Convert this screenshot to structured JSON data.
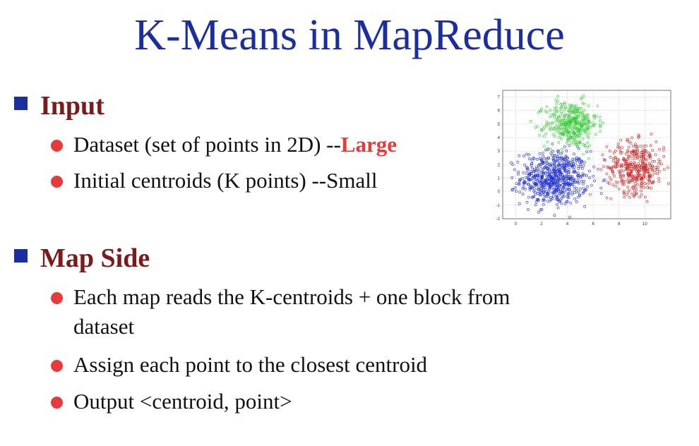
{
  "slide": {
    "title": "K-Means in MapReduce"
  },
  "sections": [
    {
      "heading": "Input",
      "bullets": [
        {
          "text": "Dataset (set of points in 2D) --",
          "highlight": "Large"
        },
        {
          "text": "Initial centroids (K points) --Small"
        }
      ]
    },
    {
      "heading": "Map Side",
      "bullets": [
        {
          "line1": "Each map reads the K-centroids + one block from",
          "line2": "dataset"
        },
        {
          "text": "Assign each point to the closest centroid"
        },
        {
          "text": "Output <centroid, point>"
        }
      ]
    }
  ],
  "colors": {
    "title": "#1a2ea0",
    "heading": "#7a1a1a",
    "bullet": "#e83a3a",
    "highlight": "#e83a3a"
  },
  "chart_data": {
    "type": "scatter",
    "x_ticks": [
      "0",
      "2",
      "4",
      "6",
      "8",
      "10"
    ],
    "y_ticks": [
      "-2",
      "-1",
      "0",
      "1",
      "2",
      "3",
      "4",
      "5",
      "6",
      "7"
    ],
    "xlim": [
      -1,
      12
    ],
    "ylim": [
      -2,
      7.5
    ],
    "grid": true,
    "clusters": [
      {
        "color": "#1f2fd1",
        "center": [
          3,
          1
        ],
        "spread": [
          1.3,
          1.0
        ],
        "count": 650
      },
      {
        "color": "#33cc33",
        "center": [
          4.3,
          5
        ],
        "spread": [
          1.0,
          0.85
        ],
        "count": 380
      },
      {
        "color": "#cc2222",
        "center": [
          9.3,
          1.8
        ],
        "spread": [
          1.1,
          0.95
        ],
        "count": 380
      }
    ]
  }
}
